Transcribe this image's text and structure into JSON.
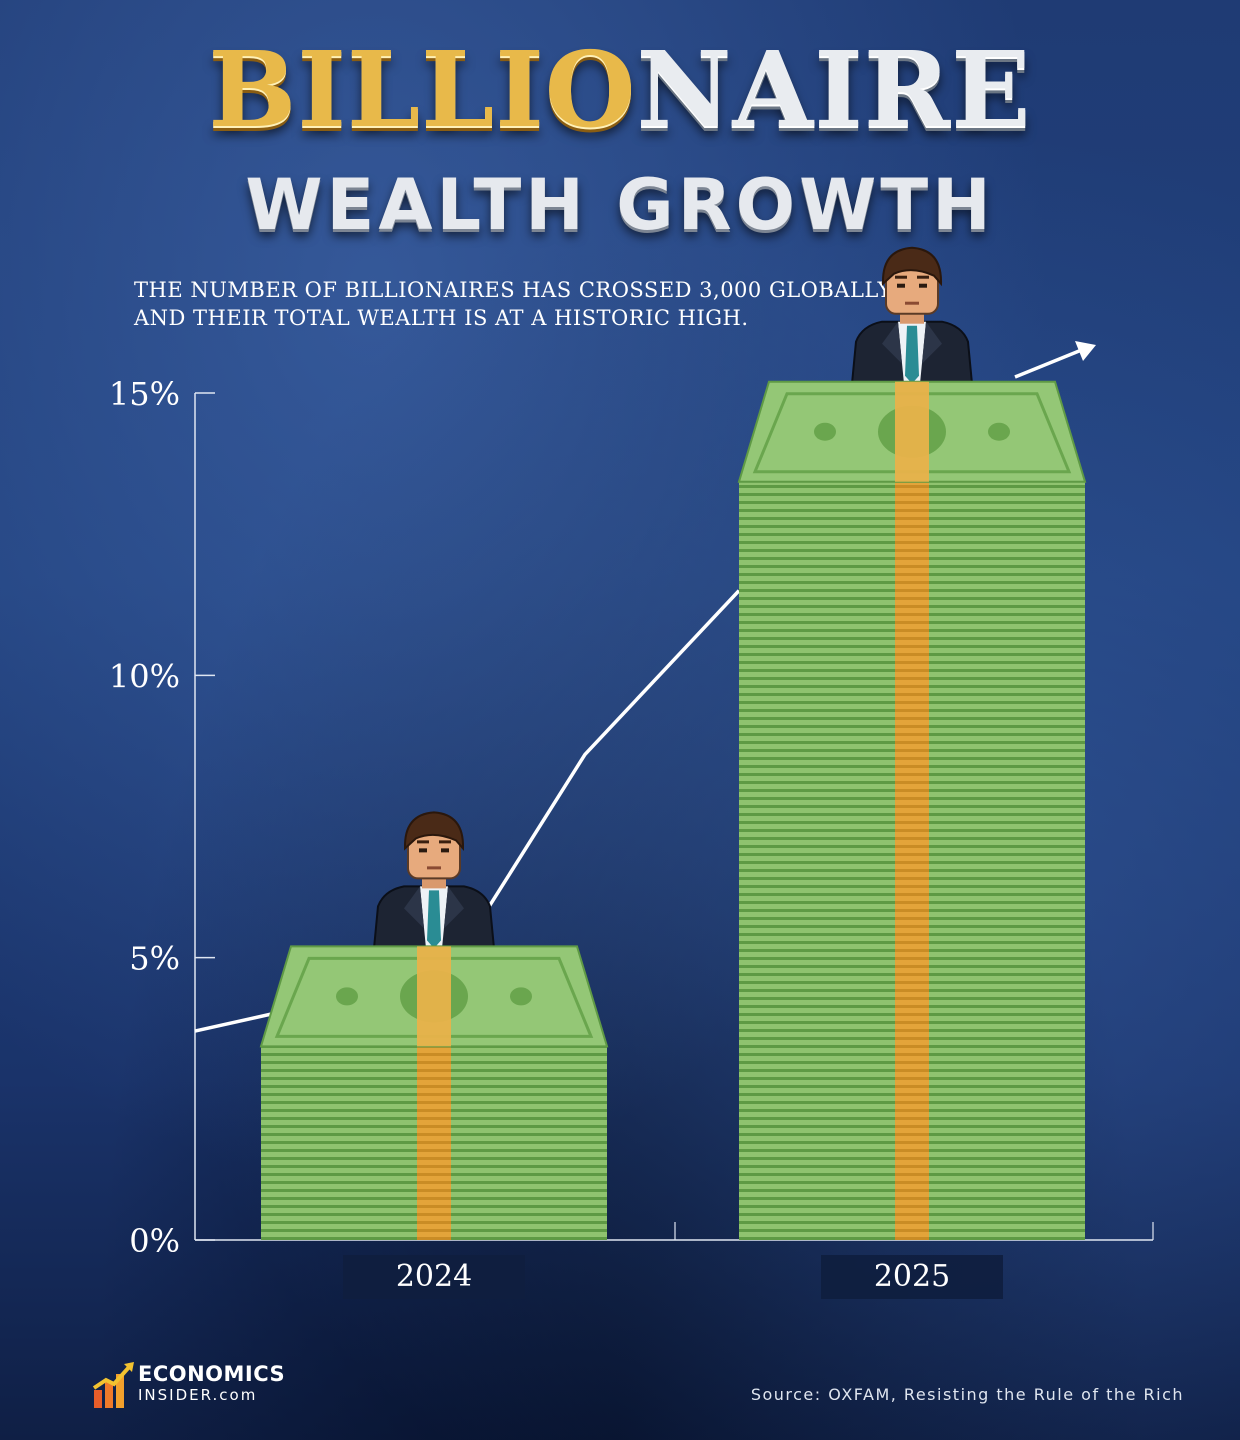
{
  "header": {
    "title_part1": "BILLIO",
    "title_part2": "NAIRE",
    "title_line2": "WEALTH GROWTH",
    "subtitle_line1": "THE NUMBER OF BILLIONAIRES HAS CROSSED 3,000 GLOBALLY,",
    "subtitle_line2": "AND THEIR TOTAL WEALTH IS AT A HISTORIC HIGH."
  },
  "chart_data": {
    "type": "bar",
    "categories": [
      "2024",
      "2025"
    ],
    "values": [
      5.2,
      15.2
    ],
    "ylim": [
      0,
      15
    ],
    "yticks": [
      0,
      5,
      10,
      15
    ],
    "ytick_labels": [
      "0%",
      "5%",
      "10%",
      "15%"
    ],
    "trend_line": {
      "x": [
        0.0,
        0.1,
        0.75,
        1.5,
        2.0
      ],
      "y": [
        3.7,
        4.0,
        5.2,
        8.6,
        11.5
      ]
    },
    "grid": false,
    "legend": "none"
  },
  "colors": {
    "bill_light": "#94c776",
    "bill_dark": "#5f9a45",
    "band": "#e6a83d",
    "axis": "#ffffff",
    "title_gold": "#e8b94a"
  },
  "icons": [
    "businessman-icon",
    "arrow-icon",
    "economics-insider-logo-icon"
  ],
  "brand": {
    "line1": "ECONOMICS",
    "line2": "INSIDER.com"
  },
  "source": "Source: OXFAM, Resisting the Rule of the Rich"
}
